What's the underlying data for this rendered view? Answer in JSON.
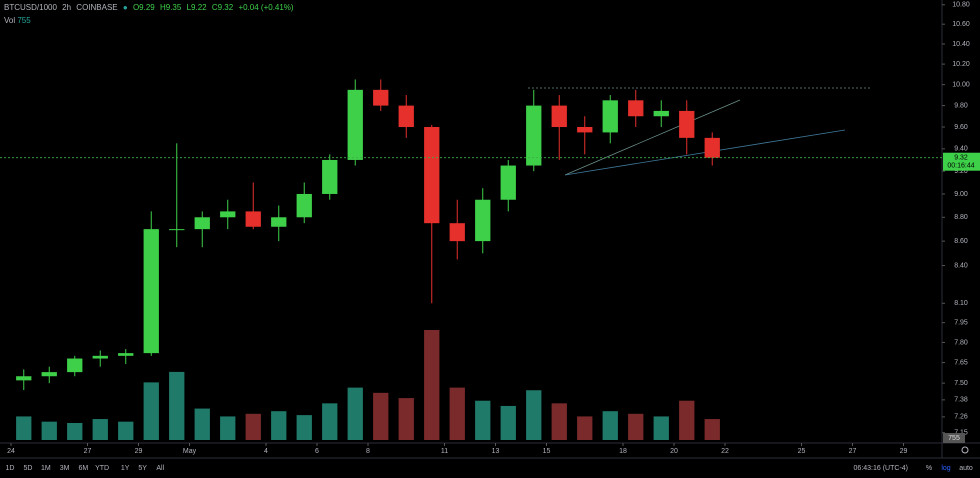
{
  "chart_data": {
    "type": "candlestick",
    "symbol": "BTCUSD/1000",
    "interval": "2h",
    "exchange": "COINBASE",
    "ohlc_legend": {
      "open": "O9.29",
      "high": "H9.35",
      "low": "L9.22",
      "close": "C9.32",
      "change": "+0.04 (+0.41%)"
    },
    "volume_title": "Vol",
    "volume_label": "755",
    "last_price": 9.32,
    "countdown": "00:16:44",
    "up_color": "#3fd04a",
    "down_color": "#e5302c",
    "up_volume_color": "#1f7a6a",
    "down_volume_color": "#7a2a2a",
    "price_line_color": "#3fae4a",
    "log_scale": true,
    "x": [
      "04-24",
      "04-25",
      "04-26",
      "04-27",
      "04-28",
      "04-29",
      "04-30",
      "05-01",
      "05-02",
      "05-03",
      "05-04",
      "05-05",
      "05-06",
      "05-07",
      "05-08",
      "05-09",
      "05-10",
      "05-11",
      "05-12",
      "05-13",
      "05-14",
      "05-15",
      "05-16",
      "05-17",
      "05-18",
      "05-19",
      "05-20",
      "05-21"
    ],
    "open": [
      7.52,
      7.55,
      7.58,
      7.68,
      7.7,
      7.72,
      8.7,
      8.7,
      8.8,
      8.85,
      8.72,
      8.8,
      9.0,
      9.3,
      9.95,
      9.8,
      9.6,
      8.75,
      8.6,
      8.95,
      9.25,
      9.8,
      9.6,
      9.55,
      9.85,
      9.7,
      9.75,
      9.5
    ],
    "high": [
      7.6,
      7.62,
      7.7,
      7.74,
      7.75,
      8.85,
      9.45,
      8.85,
      8.95,
      9.1,
      8.9,
      9.1,
      9.35,
      10.05,
      10.05,
      9.9,
      9.62,
      8.95,
      9.05,
      9.3,
      9.95,
      9.9,
      9.7,
      9.9,
      9.95,
      9.85,
      9.85,
      9.55
    ],
    "low": [
      7.45,
      7.5,
      7.55,
      7.62,
      7.64,
      7.7,
      8.55,
      8.55,
      8.7,
      8.7,
      8.6,
      8.75,
      8.95,
      9.25,
      9.75,
      9.5,
      8.1,
      8.45,
      8.5,
      8.85,
      9.2,
      9.3,
      9.35,
      9.45,
      9.6,
      9.6,
      9.35,
      9.25
    ],
    "close": [
      7.55,
      7.58,
      7.68,
      7.7,
      7.72,
      8.7,
      8.7,
      8.8,
      8.85,
      8.72,
      8.8,
      9.0,
      9.3,
      9.95,
      9.8,
      9.6,
      8.75,
      8.6,
      8.95,
      9.25,
      9.8,
      9.6,
      9.55,
      9.85,
      9.7,
      9.75,
      9.5,
      9.32
    ],
    "volume": [
      9000,
      7000,
      6500,
      8000,
      7000,
      22000,
      26000,
      12000,
      9000,
      10000,
      11000,
      9500,
      14000,
      20000,
      18000,
      16000,
      42000,
      20000,
      15000,
      13000,
      19000,
      14000,
      9000,
      11000,
      10000,
      9000,
      15000,
      8000
    ],
    "xlim": [
      "04-24",
      "05-30"
    ],
    "xticks": [
      {
        "value": "04-24",
        "label": "24"
      },
      {
        "value": "04-27",
        "label": "27"
      },
      {
        "value": "04-29",
        "label": "29"
      },
      {
        "value": "05-01",
        "label": "May"
      },
      {
        "value": "05-04",
        "label": "4"
      },
      {
        "value": "05-06",
        "label": "6"
      },
      {
        "value": "05-08",
        "label": "8"
      },
      {
        "value": "05-11",
        "label": "11"
      },
      {
        "value": "05-13",
        "label": "13"
      },
      {
        "value": "05-15",
        "label": "15"
      },
      {
        "value": "05-18",
        "label": "18"
      },
      {
        "value": "05-20",
        "label": "20"
      },
      {
        "value": "05-22",
        "label": "22"
      },
      {
        "value": "05-25",
        "label": "25"
      },
      {
        "value": "05-27",
        "label": "27"
      },
      {
        "value": "05-29",
        "label": "29"
      }
    ],
    "ylim": [
      7.1,
      10.85
    ],
    "yticks": [
      {
        "value": 10.8,
        "label": "10.80"
      },
      {
        "value": 10.6,
        "label": "10.60"
      },
      {
        "value": 10.4,
        "label": "10.40"
      },
      {
        "value": 10.2,
        "label": "10.20"
      },
      {
        "value": 10,
        "label": "10.00"
      },
      {
        "value": 9.8,
        "label": "9.80"
      },
      {
        "value": 9.6,
        "label": "9.60"
      },
      {
        "value": 9.4,
        "label": "9.40"
      },
      {
        "value": 9.2,
        "label": "9.20"
      },
      {
        "value": 9,
        "label": "9.00"
      },
      {
        "value": 8.8,
        "label": "8.80"
      },
      {
        "value": 8.6,
        "label": "8.60"
      },
      {
        "value": 8.4,
        "label": "8.40"
      },
      {
        "value": 8.1,
        "label": "8.10"
      },
      {
        "value": 7.95,
        "label": "7.95"
      },
      {
        "value": 7.8,
        "label": "7.80"
      },
      {
        "value": 7.65,
        "label": "7.65"
      },
      {
        "value": 7.5,
        "label": "7.50"
      },
      {
        "value": 7.38,
        "label": "7.38"
      },
      {
        "value": 7.26,
        "label": "7.26"
      },
      {
        "value": 7.15,
        "label": "7.15"
      }
    ],
    "ranges": [
      "1D",
      "5D",
      "1M",
      "3M",
      "6M",
      "YTD",
      "1Y",
      "5Y",
      "All"
    ],
    "clock": "06:43:16 (UTC-4)",
    "scale_buttons": [
      "%",
      "log",
      "auto"
    ]
  }
}
